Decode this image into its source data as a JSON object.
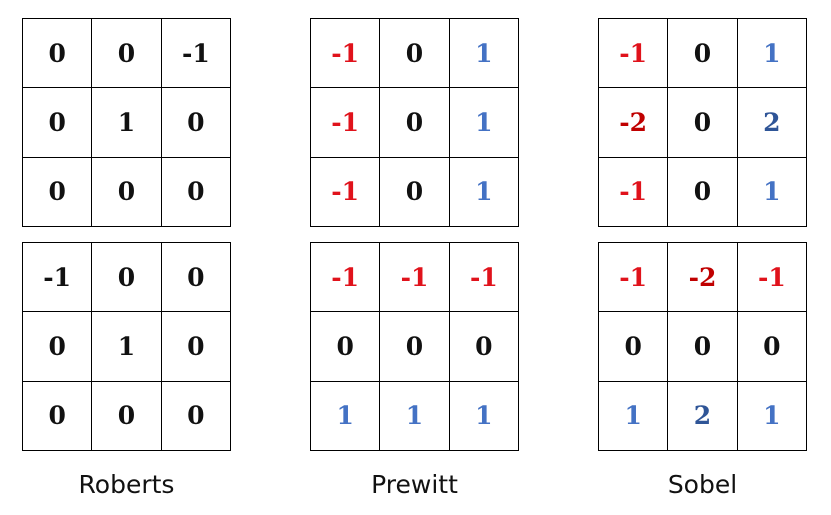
{
  "colors": {
    "text": "#111111",
    "negative": "#e0121b",
    "negative_strong": "#c00000",
    "positive": "#4472c4",
    "positive_strong": "#2f5597",
    "grid": "#000000"
  },
  "kernels": [
    {
      "name": "Roberts",
      "top": [
        [
          "0",
          "0",
          "-1"
        ],
        [
          "0",
          "1",
          "0"
        ],
        [
          "0",
          "0",
          "0"
        ]
      ],
      "bottom": [
        [
          "-1",
          "0",
          "0"
        ],
        [
          "0",
          "1",
          "0"
        ],
        [
          "0",
          "0",
          "0"
        ]
      ]
    },
    {
      "name": "Prewitt",
      "top": [
        [
          "-1",
          "0",
          "1"
        ],
        [
          "-1",
          "0",
          "1"
        ],
        [
          "-1",
          "0",
          "1"
        ]
      ],
      "bottom": [
        [
          "-1",
          "-1",
          "-1"
        ],
        [
          "0",
          "0",
          "0"
        ],
        [
          "1",
          "1",
          "1"
        ]
      ]
    },
    {
      "name": "Sobel",
      "top": [
        [
          "-1",
          "0",
          "1"
        ],
        [
          "-2",
          "0",
          "2"
        ],
        [
          "-1",
          "0",
          "1"
        ]
      ],
      "bottom": [
        [
          "-1",
          "-2",
          "-1"
        ],
        [
          "0",
          "0",
          "0"
        ],
        [
          "1",
          "2",
          "1"
        ]
      ]
    }
  ]
}
